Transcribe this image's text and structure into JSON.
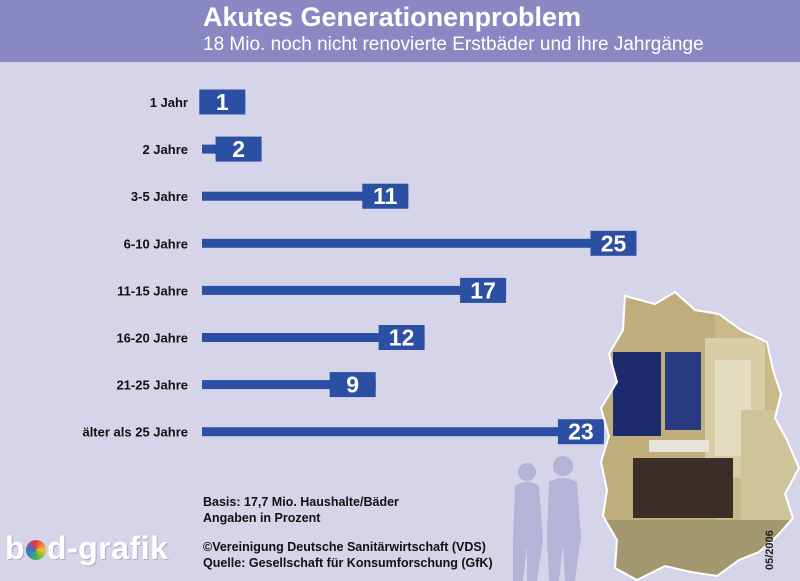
{
  "header": {
    "title": "Akutes Generationenproblem",
    "subtitle": "18 Mio. noch nicht renovierte Erstbäder und ihre Jahrgänge"
  },
  "chart_data": {
    "type": "bar",
    "orientation": "horizontal",
    "title": "Akutes Generationenproblem",
    "subtitle": "18 Mio. noch nicht renovierte Erstbäder und ihre Jahrgänge",
    "categories": [
      "1 Jahr",
      "2 Jahre",
      "3-5 Jahre",
      "6-10 Jahre",
      "11-15 Jahre",
      "16-20 Jahre",
      "21-25 Jahre",
      "älter als 25 Jahre"
    ],
    "values": [
      1,
      2,
      11,
      25,
      17,
      12,
      9,
      23
    ],
    "unit": "Prozent",
    "bar_color": "#2b4fa3",
    "grid": false,
    "legend": "none"
  },
  "notes": {
    "basis": "Basis: 17,7 Mio. Haushalte/Bäder",
    "unit_note": "Angaben in Prozent"
  },
  "credits": {
    "copyright": "©Vereinigung Deutsche Sanitärwirtschaft (VDS)",
    "source": "Quelle: Gesellschaft für Konsumforschung (GfK)"
  },
  "logo": {
    "part1": "b",
    "part2": "d-grafik"
  },
  "date": "05/2006",
  "colors": {
    "background": "#d6d4e8",
    "header": "#8a88c3",
    "bar": "#2b4fa3"
  }
}
